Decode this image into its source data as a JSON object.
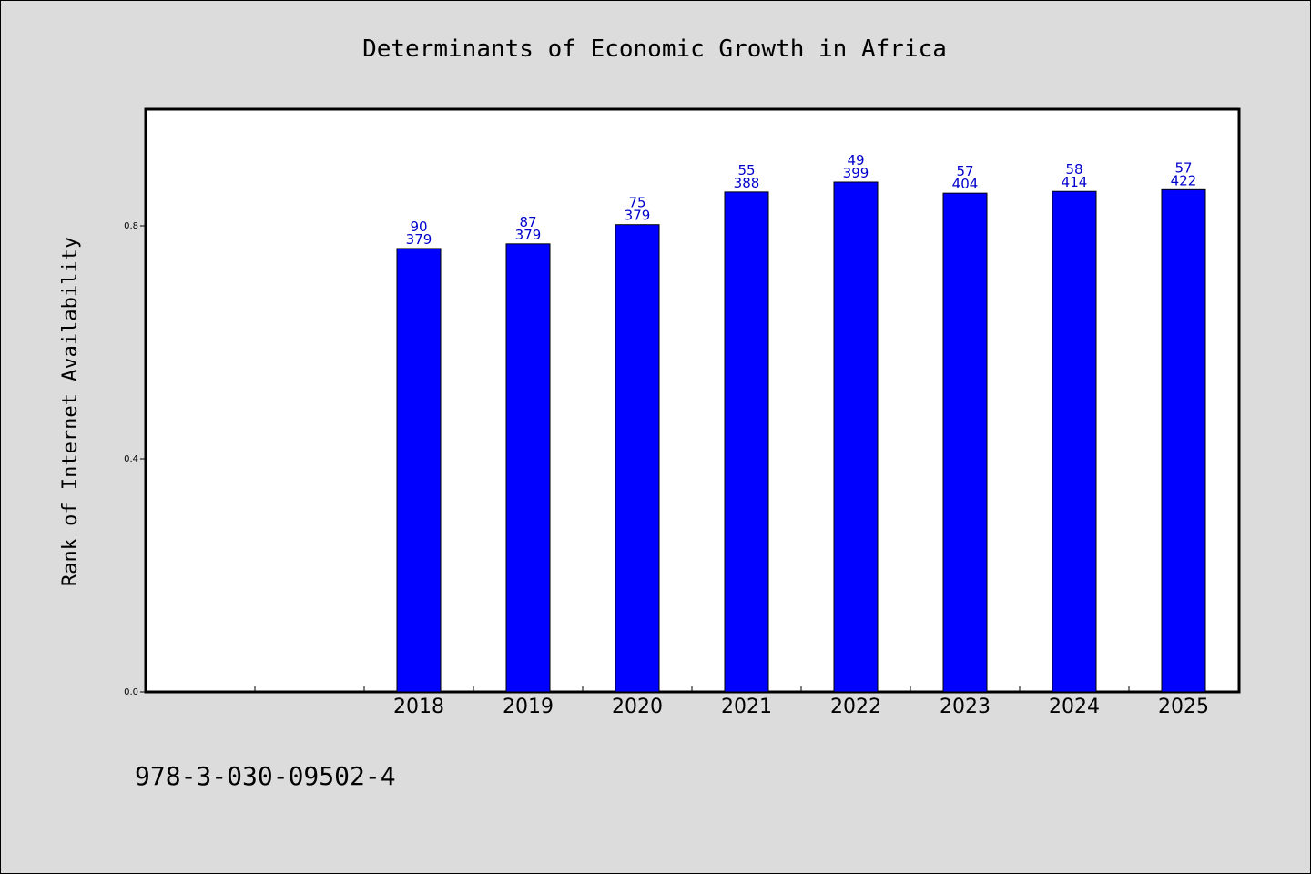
{
  "chart_data": {
    "type": "bar",
    "title": "Determinants of Economic Growth in Africa",
    "xlabel": "",
    "ylabel": "Rank of Internet Availability",
    "ylim": [
      0,
      1.0
    ],
    "yticks": [
      "0.0",
      "0.4",
      "0.8"
    ],
    "ytick_values": [
      0.0,
      0.4,
      0.8
    ],
    "categories": [
      "2018",
      "2019",
      "2020",
      "2021",
      "2022",
      "2023",
      "2024",
      "2025"
    ],
    "values": [
      0.761,
      0.769,
      0.802,
      0.858,
      0.875,
      0.856,
      0.859,
      0.862
    ],
    "labels_top": [
      "90",
      "87",
      "75",
      "55",
      "49",
      "57",
      "58",
      "57"
    ],
    "labels_bottom": [
      "379",
      "379",
      "379",
      "388",
      "399",
      "404",
      "414",
      "422"
    ],
    "leading_empty_slots": 2,
    "bar_color": "#0000ff",
    "label_color": "#0000cc",
    "grid": false,
    "legend": "none"
  },
  "footer": {
    "text": "978-3-030-09502-4"
  },
  "colors": {
    "background": "#dcdcdc",
    "plot_background": "#ffffff"
  }
}
